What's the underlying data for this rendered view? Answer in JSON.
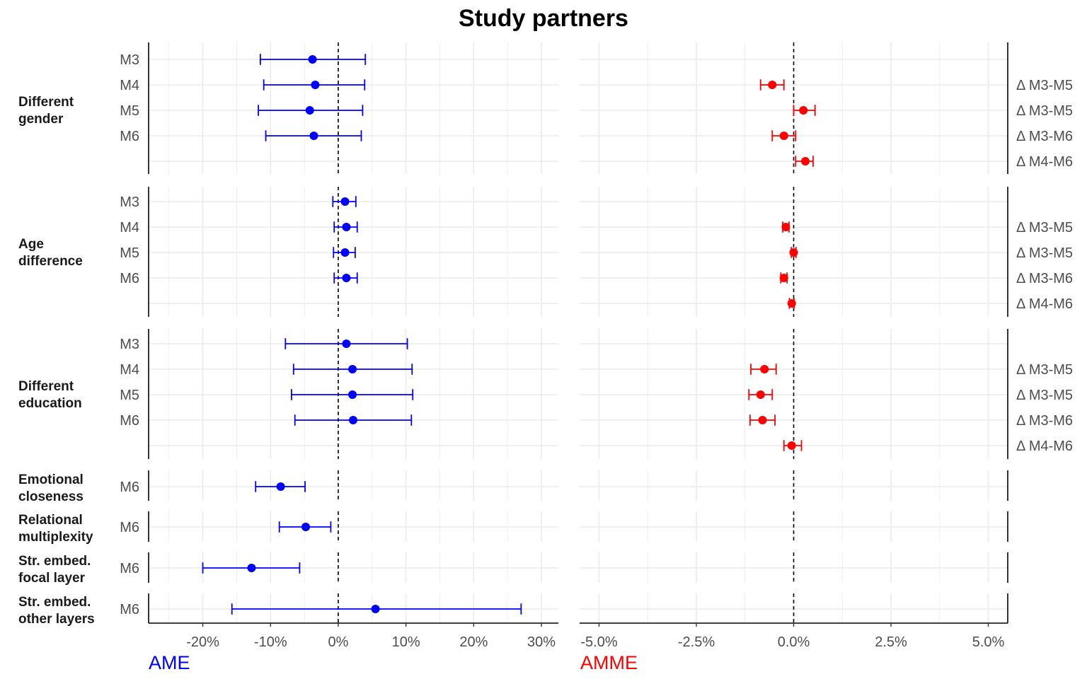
{
  "chart_data": {
    "type": "forest",
    "title": "Study partners",
    "colors": {
      "ame": "#0000ff",
      "amme": "#ff0000",
      "grid": "#ebebeb",
      "text": "#4d4d4d"
    },
    "panels": [
      {
        "id": "ame",
        "xlabel": "AME",
        "xlim": [
          -28,
          32.5
        ],
        "ticks": [
          -20,
          -10,
          0,
          10,
          20,
          30
        ],
        "tick_labels": [
          "-20%",
          "-10%",
          "0%",
          "10%",
          "20%",
          "30%"
        ]
      },
      {
        "id": "amme",
        "xlabel": "AMME",
        "xlim": [
          -5.5,
          5.5
        ],
        "ticks": [
          -5,
          -2.5,
          0,
          2.5,
          5
        ],
        "tick_labels": [
          "-5.0%",
          "-2.5%",
          "0.0%",
          "2.5%",
          "5.0%"
        ]
      }
    ],
    "groups": [
      {
        "label": [
          "Different",
          "gender"
        ],
        "ame": [
          {
            "model": "M3",
            "est": -3.8,
            "lo": -11.5,
            "hi": 4.0
          },
          {
            "model": "M4",
            "est": -3.4,
            "lo": -11.0,
            "hi": 3.9
          },
          {
            "model": "M5",
            "est": -4.2,
            "lo": -11.8,
            "hi": 3.6
          },
          {
            "model": "M6",
            "est": -3.6,
            "lo": -10.7,
            "hi": 3.4
          }
        ],
        "amme": [
          {
            "label": "Δ M3-M5",
            "est": -0.55,
            "lo": -0.85,
            "hi": -0.25
          },
          {
            "label": "Δ M3-M5",
            "est": 0.25,
            "lo": 0.0,
            "hi": 0.55
          },
          {
            "label": "Δ M3-M6",
            "est": -0.25,
            "lo": -0.55,
            "hi": 0.05
          },
          {
            "label": "Δ M4-M6",
            "est": 0.3,
            "lo": 0.05,
            "hi": 0.5
          }
        ]
      },
      {
        "label": [
          "Age",
          "difference"
        ],
        "ame": [
          {
            "model": "M3",
            "est": 1.0,
            "lo": -0.8,
            "hi": 2.6
          },
          {
            "model": "M4",
            "est": 1.2,
            "lo": -0.6,
            "hi": 2.8
          },
          {
            "model": "M5",
            "est": 1.0,
            "lo": -0.7,
            "hi": 2.5
          },
          {
            "model": "M6",
            "est": 1.2,
            "lo": -0.6,
            "hi": 2.8
          }
        ],
        "amme": [
          {
            "label": "Δ M3-M5",
            "est": -0.2,
            "lo": -0.28,
            "hi": -0.12
          },
          {
            "label": "Δ M3-M5",
            "est": 0.0,
            "lo": -0.06,
            "hi": 0.06
          },
          {
            "label": "Δ M3-M6",
            "est": -0.25,
            "lo": -0.33,
            "hi": -0.17
          },
          {
            "label": "Δ M4-M6",
            "est": -0.05,
            "lo": -0.11,
            "hi": 0.01
          }
        ]
      },
      {
        "label": [
          "Different",
          "education"
        ],
        "ame": [
          {
            "model": "M3",
            "est": 1.2,
            "lo": -7.8,
            "hi": 10.2
          },
          {
            "model": "M4",
            "est": 2.1,
            "lo": -6.6,
            "hi": 10.9
          },
          {
            "model": "M5",
            "est": 2.1,
            "lo": -6.9,
            "hi": 11.0
          },
          {
            "model": "M6",
            "est": 2.2,
            "lo": -6.4,
            "hi": 10.8
          }
        ],
        "amme": [
          {
            "label": "Δ M3-M5",
            "est": -0.75,
            "lo": -1.1,
            "hi": -0.45
          },
          {
            "label": "Δ M3-M5",
            "est": -0.85,
            "lo": -1.15,
            "hi": -0.55
          },
          {
            "label": "Δ M3-M6",
            "est": -0.8,
            "lo": -1.12,
            "hi": -0.48
          },
          {
            "label": "Δ M4-M6",
            "est": -0.05,
            "lo": -0.25,
            "hi": 0.2
          }
        ]
      },
      {
        "label": [
          "Emotional",
          "closeness"
        ],
        "ame": [
          {
            "model": "M6",
            "est": -8.5,
            "lo": -12.2,
            "hi": -4.9
          }
        ],
        "amme": []
      },
      {
        "label": [
          "Relational",
          "multiplexity"
        ],
        "ame": [
          {
            "model": "M6",
            "est": -4.8,
            "lo": -8.7,
            "hi": -1.1
          }
        ],
        "amme": []
      },
      {
        "label": [
          "Str. embed.",
          "focal layer"
        ],
        "ame": [
          {
            "model": "M6",
            "est": -12.8,
            "lo": -20.0,
            "hi": -5.7
          }
        ],
        "amme": []
      },
      {
        "label": [
          "Str. embed.",
          "other layers"
        ],
        "ame": [
          {
            "model": "M6",
            "est": 5.5,
            "lo": -15.7,
            "hi": 27.0
          }
        ],
        "amme": []
      }
    ]
  }
}
